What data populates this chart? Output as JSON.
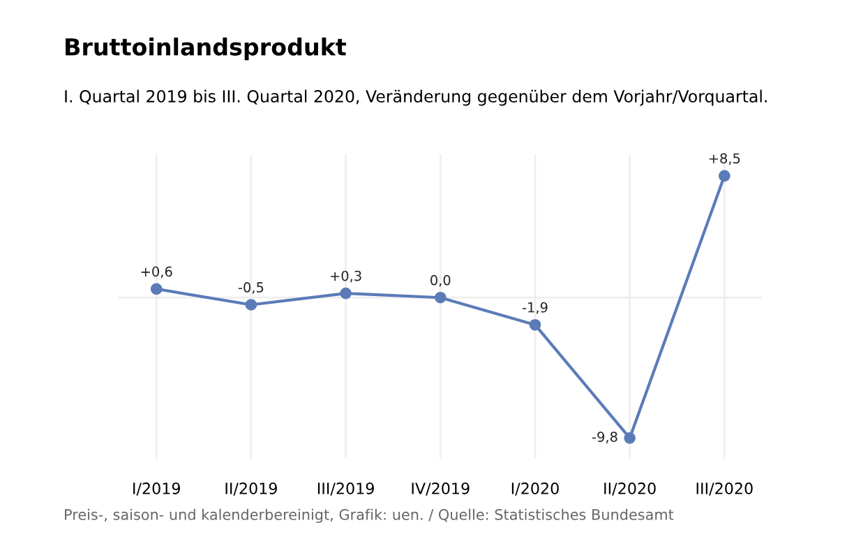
{
  "chart_data": {
    "type": "line",
    "title": "Bruttoinlandsprodukt",
    "subtitle": "I. Quartal 2019 bis III. Quartal 2020, Veränderung gegenüber dem Vorjahr/Vorquartal.",
    "categories": [
      "I/2019",
      "II/2019",
      "III/2019",
      "IV/2019",
      "I/2020",
      "II/2020",
      "III/2020"
    ],
    "series": [
      {
        "color": "#5b7bb8",
        "values": [
          0.6,
          -0.5,
          0.3,
          0.0,
          -1.9,
          -9.8,
          8.5
        ],
        "value_labels": [
          "+0,6",
          "-0,5",
          "+0,3",
          "0,0",
          "-1,9",
          "-9,8",
          "+8,5"
        ]
      }
    ],
    "marker": "circle",
    "line_style": "solid",
    "grid": "x",
    "legend": false,
    "ref_lines": [
      {
        "axis": "y",
        "value": 0,
        "color": "#eeeeee"
      }
    ],
    "tick_labels": "x",
    "annotations": [
      "Preis-, saison- und kalenderbereinigt, Grafik: uen. / Quelle: Statistisches Bundesamt"
    ]
  }
}
